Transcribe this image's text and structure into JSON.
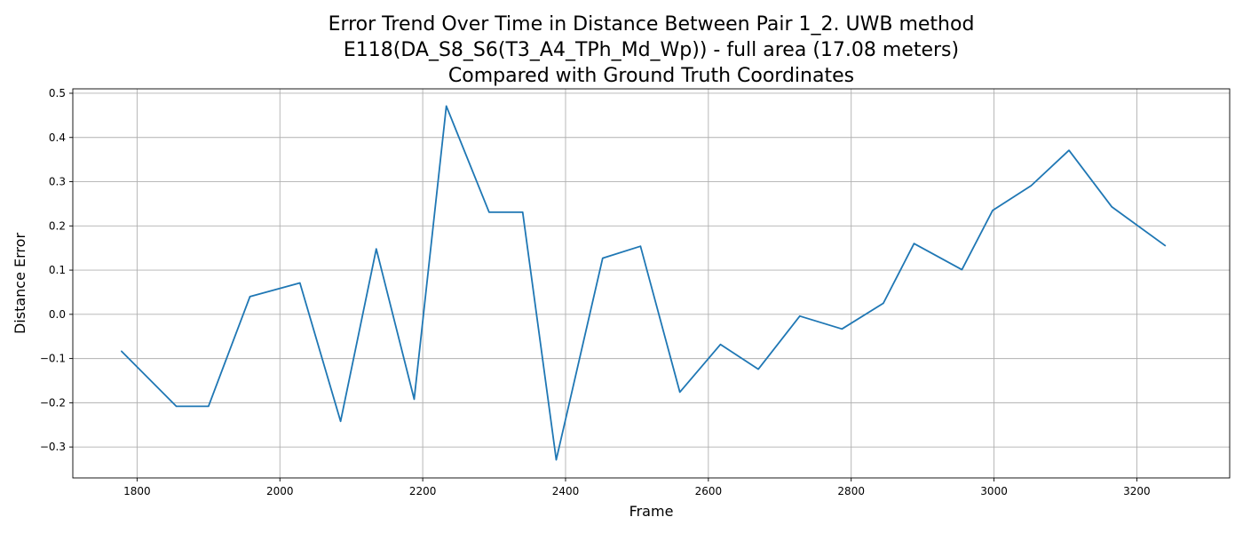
{
  "chart_data": {
    "type": "line",
    "title_lines": [
      "Error Trend Over Time in Distance Between Pair 1_2. UWB method",
      "E118(DA_S8_S6(T3_A4_TPh_Md_Wp)) - full area (17.08 meters)",
      "Compared with Ground Truth Coordinates"
    ],
    "xlabel": "Frame",
    "ylabel": "Distance Error",
    "xlim": [
      1710,
      3330
    ],
    "ylim": [
      -0.37,
      0.51
    ],
    "grid": true,
    "x_ticks": [
      1800,
      2000,
      2200,
      2400,
      2600,
      2800,
      3000,
      3200
    ],
    "x_tick_labels": [
      "1800",
      "2000",
      "2200",
      "2400",
      "2600",
      "2800",
      "3000",
      "3200"
    ],
    "y_ticks": [
      -0.3,
      -0.2,
      -0.1,
      0.0,
      0.1,
      0.2,
      0.3,
      0.4,
      0.5
    ],
    "y_tick_labels": [
      "−0.3",
      "−0.2",
      "−0.1",
      "0.0",
      "0.1",
      "0.2",
      "0.3",
      "0.4",
      "0.5"
    ],
    "line_color": "#1f77b4",
    "series": [
      {
        "x": [
          1778,
          1855,
          1900,
          1958,
          2028,
          2085,
          2135,
          2188,
          2233,
          2293,
          2340,
          2387,
          2452,
          2505,
          2560,
          2617,
          2670,
          2728,
          2787,
          2845,
          2888,
          2955,
          2998,
          3052,
          3105,
          3165,
          3240
        ],
        "values": [
          -0.083,
          -0.208,
          -0.208,
          0.04,
          0.071,
          -0.242,
          0.148,
          -0.192,
          0.471,
          0.231,
          0.231,
          -0.329,
          0.127,
          0.154,
          -0.176,
          -0.068,
          -0.124,
          -0.004,
          -0.033,
          0.025,
          0.16,
          0.101,
          0.235,
          0.291,
          0.371,
          0.243,
          0.155
        ]
      }
    ]
  }
}
